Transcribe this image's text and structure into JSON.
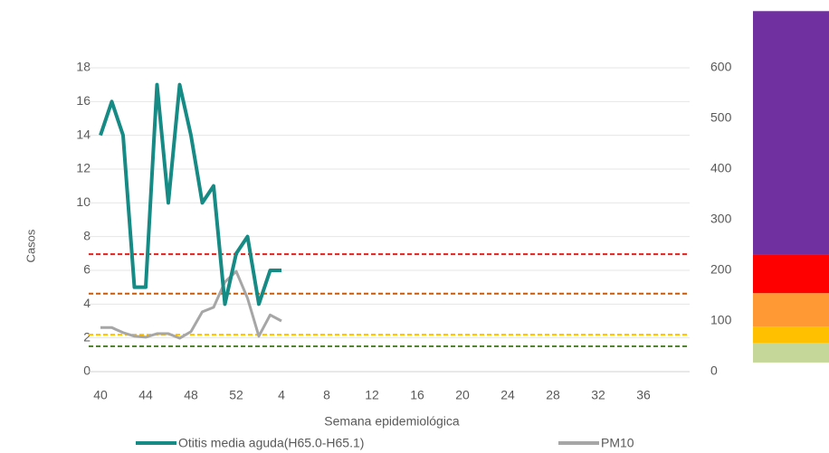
{
  "chart_data": {
    "type": "line",
    "x_label": "Semana epidemiológica",
    "y_label": "Casos",
    "categories": [
      "40",
      null,
      null,
      null,
      "44",
      null,
      null,
      null,
      "48",
      null,
      null,
      null,
      "52",
      null,
      null,
      null,
      "4",
      null,
      null,
      null,
      "8",
      null,
      null,
      null,
      "12",
      null,
      null,
      null,
      "16",
      null,
      null,
      null,
      "20",
      null,
      null,
      null,
      "24",
      null,
      null,
      null,
      "28",
      null,
      null,
      null,
      "32",
      null,
      null,
      null,
      "36",
      null,
      null,
      null
    ],
    "series": [
      {
        "name": "Otitis media aguda(H65.0-H65.1)",
        "color": "#168a84",
        "values": [
          14,
          16,
          14,
          5,
          5,
          17,
          10,
          17,
          14,
          10,
          11,
          4,
          7,
          8,
          4,
          6,
          6,
          null,
          null,
          null,
          null,
          null,
          null,
          null,
          null,
          null,
          null,
          null,
          null,
          null,
          null,
          null,
          null,
          null,
          null,
          null,
          null,
          null,
          null,
          null,
          null,
          null,
          null,
          null,
          null,
          null,
          null,
          null,
          null,
          null,
          null,
          null
        ]
      },
      {
        "name": "PM10",
        "color": "#a6a6a6",
        "axis": "y2",
        "values": [
          87,
          87,
          77,
          70,
          68,
          75,
          75,
          66,
          79,
          118,
          127,
          177,
          198,
          145,
          70,
          112,
          100,
          null,
          null,
          null,
          null,
          null,
          null,
          null,
          null,
          null,
          null,
          null,
          null,
          null,
          null,
          null,
          null,
          null,
          null,
          null,
          null,
          null,
          null,
          null,
          null,
          null,
          null,
          null,
          null,
          null,
          null,
          null,
          null,
          null,
          null,
          null
        ]
      }
    ],
    "ylim": [
      0,
      18
    ],
    "yticks": [
      0,
      2,
      4,
      6,
      8,
      10,
      12,
      14,
      16,
      18
    ],
    "y2lim": [
      0,
      600
    ],
    "y2ticks": [
      0,
      100,
      200,
      300,
      400,
      500,
      600
    ],
    "grid": true,
    "threshold_lines": [
      {
        "value": 232,
        "color": "#e8201d"
      },
      {
        "value": 154,
        "color": "#c55a11"
      },
      {
        "value": 73,
        "color": "#ffc000"
      },
      {
        "value": 50,
        "color": "#548235"
      }
    ],
    "color_bands": [
      {
        "from": 18,
        "to": 57,
        "color": "#c5d89a"
      },
      {
        "from": 57,
        "to": 89,
        "color": "#ffc000"
      },
      {
        "from": 89,
        "to": 155,
        "color": "#ff9933"
      },
      {
        "from": 155,
        "to": 232,
        "color": "#ff0000"
      },
      {
        "from": 232,
        "to": 712,
        "color": "#7030a0"
      }
    ],
    "legend": "bottom"
  }
}
